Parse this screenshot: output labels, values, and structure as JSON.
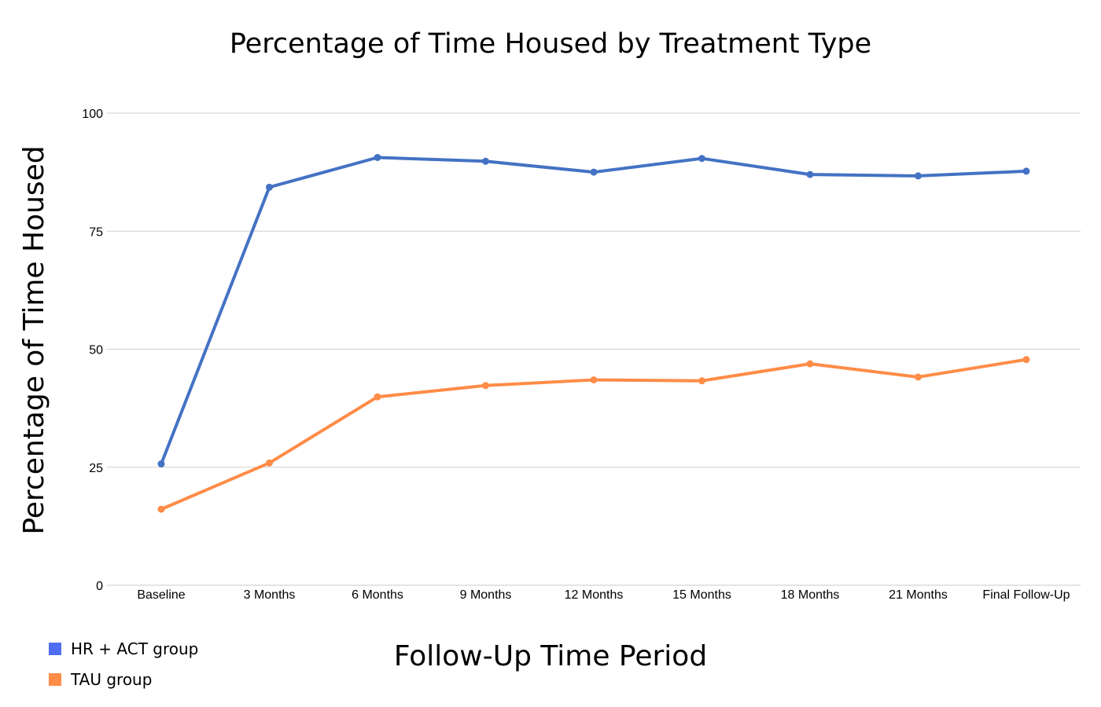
{
  "chart_data": {
    "type": "line",
    "title": "Percentage of Time Housed by Treatment Type",
    "xlabel": "Follow-Up Time Period",
    "ylabel": "Percentage of Time Housed",
    "categories": [
      "Baseline",
      "3 Months",
      "6 Months",
      "9 Months",
      "12 Months",
      "15 Months",
      "18 Months",
      "21 Months",
      "Final Follow-Up"
    ],
    "ylim": [
      0,
      100
    ],
    "yticks": [
      "0",
      "25",
      "50",
      "75",
      "100"
    ],
    "grid": true,
    "legend_position": "bottom-left",
    "series": [
      {
        "name": "HR + ACT group",
        "color": "#4472c4",
        "legend_color": "#4f6ef2",
        "values": [
          25.7,
          84.3,
          90.6,
          89.8,
          87.5,
          90.4,
          87.0,
          86.7,
          87.7
        ]
      },
      {
        "name": "TAU group",
        "color": "#ff8c47",
        "legend_color": "#ff8c47",
        "values": [
          16.1,
          25.9,
          39.9,
          42.3,
          43.5,
          43.3,
          46.9,
          44.1,
          47.8
        ]
      }
    ]
  }
}
